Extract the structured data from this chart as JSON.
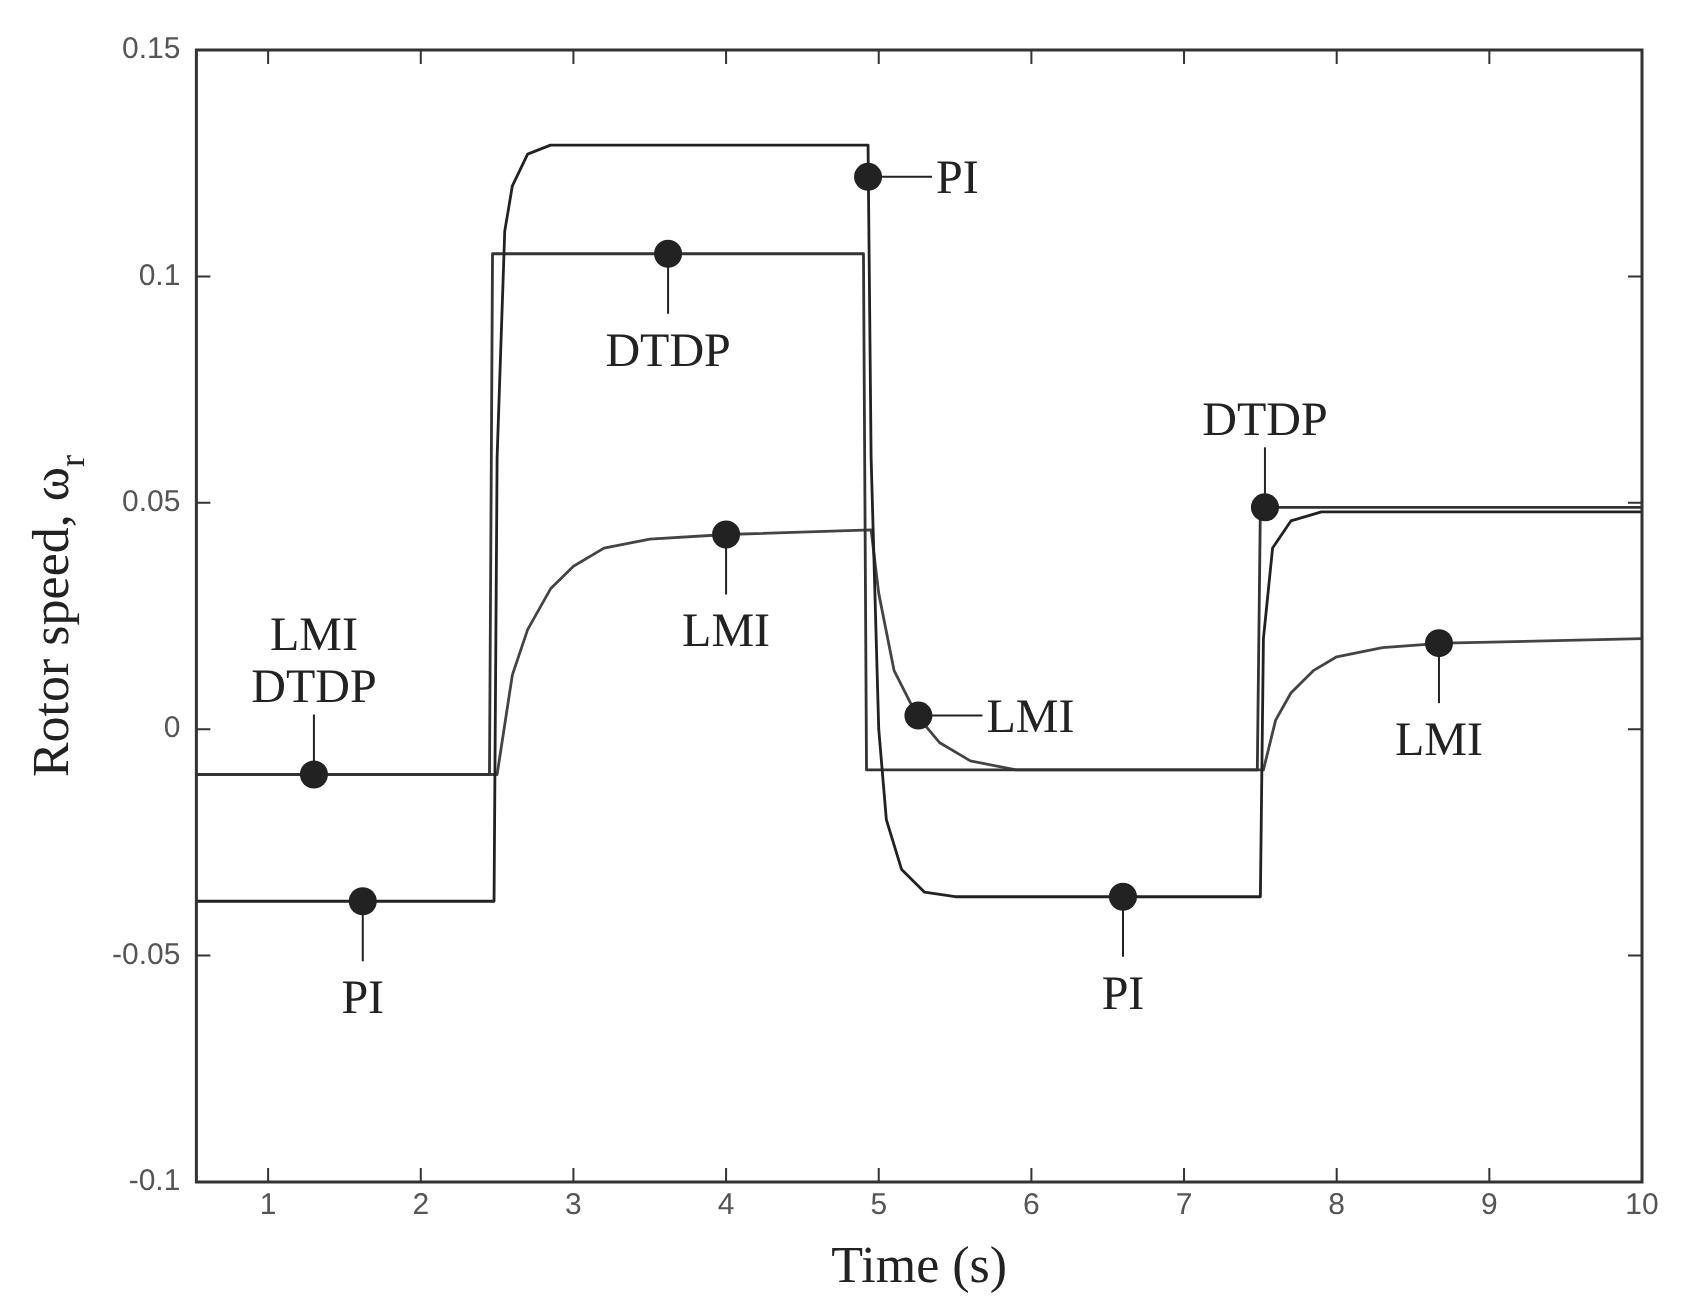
{
  "chart_data": {
    "type": "line",
    "xlabel": "Time (s)",
    "ylabel": "Rotor speed, ω$_{r}$",
    "xlim": [
      0.53,
      10
    ],
    "xticks": [
      1,
      2,
      3,
      4,
      5,
      6,
      7,
      8,
      9,
      10
    ],
    "ylim": [
      -0.1,
      0.15
    ],
    "yticks": [
      -0.1,
      -0.05,
      0,
      0.05,
      0.1,
      0.15
    ],
    "grid": false,
    "legend": false,
    "marker": "none",
    "line_style": "solid",
    "series": [
      {
        "color": "#222222",
        "x": [
          0.53,
          2.48,
          2.5,
          2.55,
          2.6,
          2.7,
          2.85,
          4.93,
          4.95,
          5.0,
          5.05,
          5.15,
          5.3,
          5.5,
          7.5,
          7.52,
          7.58,
          7.7,
          7.9,
          10
        ],
        "values": [
          -0.038,
          -0.038,
          0.06,
          0.11,
          0.12,
          0.127,
          0.129,
          0.129,
          0.06,
          0.0,
          -0.02,
          -0.031,
          -0.036,
          -0.037,
          -0.037,
          0.02,
          0.04,
          0.046,
          0.048,
          0.048
        ]
      },
      {
        "color": "#333333",
        "x": [
          0.53,
          2.45,
          2.47,
          4.9,
          4.92,
          7.48,
          7.5,
          10
        ],
        "values": [
          -0.01,
          -0.01,
          0.105,
          0.105,
          -0.009,
          -0.009,
          0.049,
          0.049
        ]
      },
      {
        "color": "#444444",
        "x": [
          0.53,
          2.5,
          2.6,
          2.7,
          2.85,
          3.0,
          3.2,
          3.5,
          4.0,
          4.95,
          5.0,
          5.1,
          5.25,
          5.4,
          5.6,
          5.9,
          7.52,
          7.6,
          7.7,
          7.85,
          8.0,
          8.3,
          8.7,
          10
        ],
        "values": [
          -0.01,
          -0.01,
          0.012,
          0.022,
          0.031,
          0.036,
          0.04,
          0.042,
          0.043,
          0.044,
          0.03,
          0.013,
          0.003,
          -0.003,
          -0.007,
          -0.009,
          -0.009,
          0.002,
          0.008,
          0.013,
          0.016,
          0.018,
          0.019,
          0.02
        ]
      }
    ],
    "annotations": [
      {
        "text": "LMI\nDTDP",
        "x": 1.3,
        "y": -0.01
      },
      {
        "text": "PI",
        "x": 1.62,
        "y": -0.038
      },
      {
        "text": "DTDP",
        "x": 3.62,
        "y": 0.105
      },
      {
        "text": "LMI",
        "x": 4.0,
        "y": 0.043
      },
      {
        "text": "PI",
        "x": 4.93,
        "y": 0.122
      },
      {
        "text": "LMI",
        "x": 5.26,
        "y": 0.003
      },
      {
        "text": "PI",
        "x": 6.6,
        "y": -0.037
      },
      {
        "text": "DTDP",
        "x": 7.53,
        "y": 0.049
      },
      {
        "text": "LMI",
        "x": 8.67,
        "y": 0.019
      }
    ]
  }
}
